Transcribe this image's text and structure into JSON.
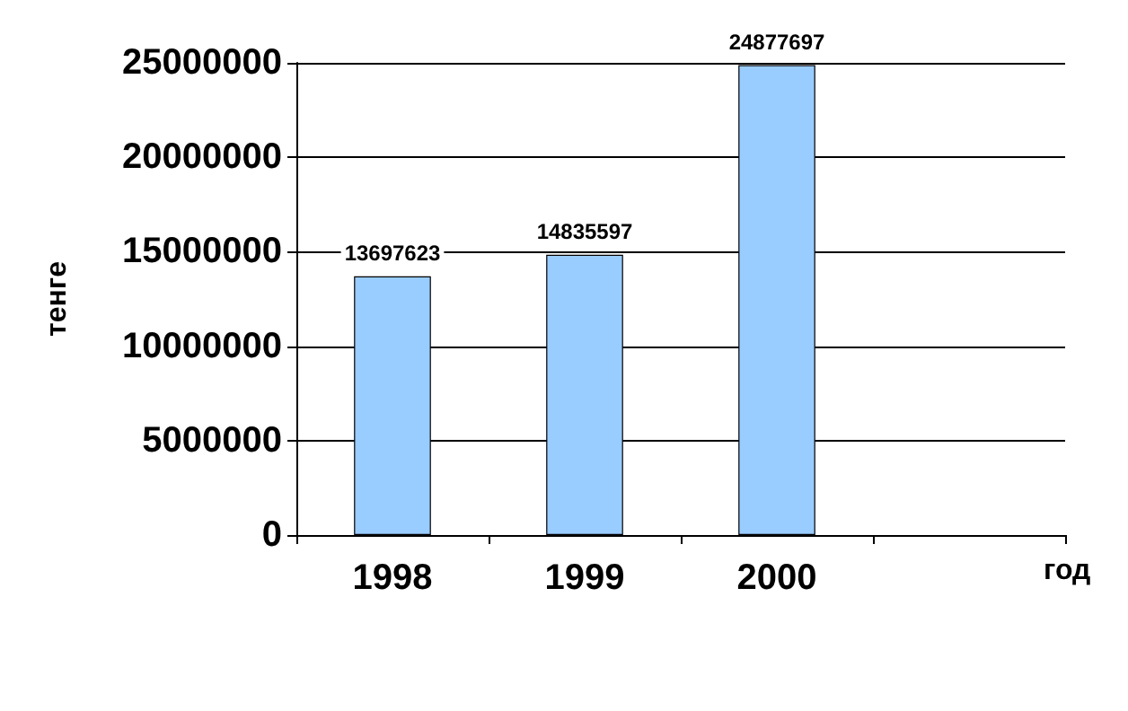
{
  "chart_data": {
    "type": "bar",
    "xlabel": "год",
    "ylabel": "тенге",
    "categories": [
      "1998",
      "1999",
      "2000",
      null
    ],
    "values": [
      13697623,
      14835597,
      24877697,
      null
    ],
    "color": "#99ccff",
    "data_labels": true,
    "ylim": [
      0,
      25000000
    ],
    "yticks": [
      0,
      5000000,
      10000000,
      15000000,
      20000000,
      25000000
    ],
    "grid": "y"
  }
}
